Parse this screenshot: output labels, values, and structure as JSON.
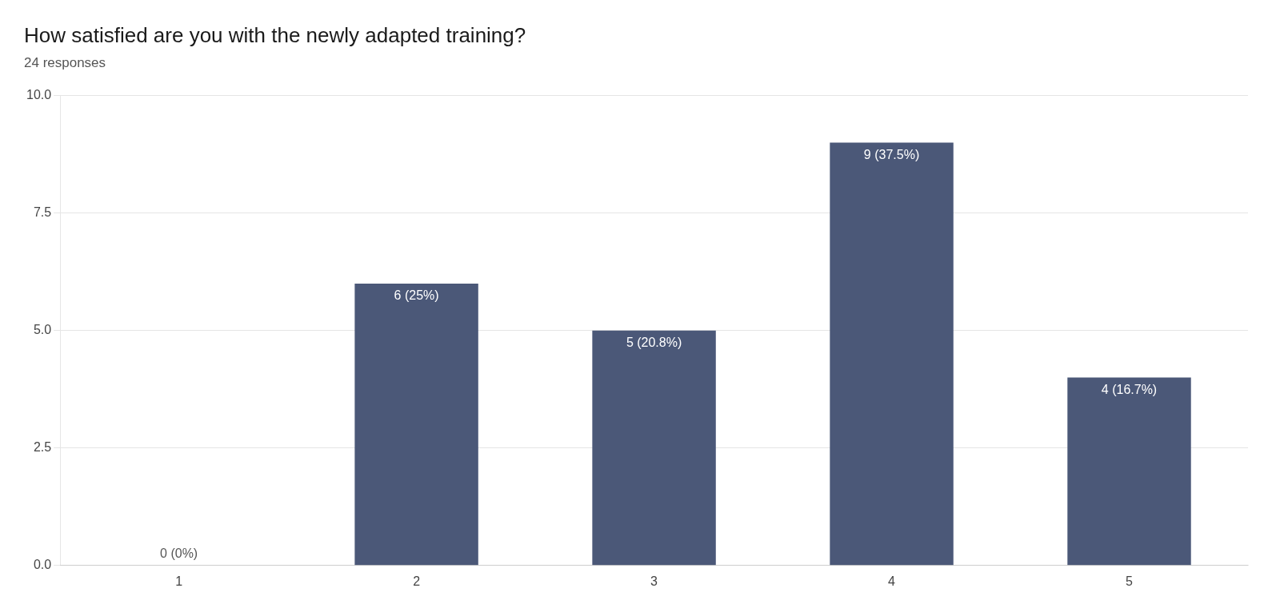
{
  "chart_data": {
    "type": "bar",
    "title": "How satisfied are you with the newly adapted training?",
    "subtitle": "24 responses",
    "categories": [
      1,
      2,
      3,
      4,
      5
    ],
    "values": [
      0,
      6,
      5,
      9,
      4
    ],
    "value_labels": [
      "0 (0%)",
      "6 (25%)",
      "5 (20.8%)",
      "9 (37.5%)",
      "4 (16.7%)"
    ],
    "data_labels": true,
    "color": "#4b5878",
    "ylim": [
      0,
      10.0
    ],
    "yticks": [
      {
        "value": 0,
        "label": "0.0"
      },
      2.5,
      {
        "value": 5,
        "label": "5.0"
      },
      7.5,
      {
        "value": 10,
        "label": "10.0"
      }
    ],
    "grid": true
  }
}
